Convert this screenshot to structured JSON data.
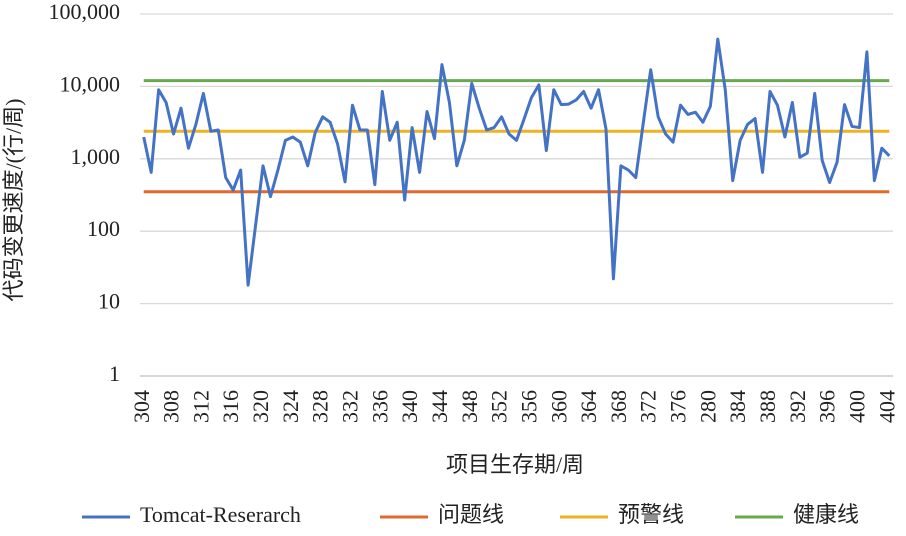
{
  "chart_data": {
    "type": "line",
    "y_scale": "log",
    "grid": true,
    "legend": "bottom",
    "ylabel": "代码变更速度/(行/周)",
    "xlabel": "项目生存期/周",
    "ylim": [
      1,
      100000
    ],
    "yticks": [
      {
        "value": 100000,
        "label": "100,000"
      },
      {
        "value": 10000,
        "label": "10,000"
      },
      {
        "value": 1000,
        "label": "1,000"
      },
      100,
      10,
      1
    ],
    "categories": [
      "304",
      null,
      null,
      null,
      "308",
      null,
      null,
      null,
      "312",
      null,
      null,
      null,
      "316",
      null,
      null,
      null,
      "320",
      null,
      null,
      null,
      "324",
      null,
      null,
      null,
      "328",
      null,
      null,
      null,
      "332",
      null,
      null,
      null,
      "336",
      null,
      null,
      null,
      "340",
      null,
      null,
      null,
      "344",
      null,
      null,
      null,
      "348",
      null,
      null,
      null,
      "352",
      null,
      null,
      null,
      "356",
      null,
      null,
      null,
      "360",
      null,
      null,
      null,
      "364",
      null,
      null,
      null,
      "368",
      null,
      null,
      null,
      "372",
      null,
      null,
      null,
      "376",
      null,
      null,
      null,
      "280",
      null,
      null,
      null,
      "384",
      null,
      null,
      null,
      "388",
      null,
      null,
      null,
      "392",
      null,
      null,
      null,
      "396",
      null,
      null,
      null,
      "400",
      null,
      null,
      null,
      "404"
    ],
    "series": [
      {
        "name": "Tomcat-Reserarch",
        "color": "#4472c4",
        "values": [
          2000,
          650,
          9000,
          6000,
          2200,
          5000,
          1400,
          3000,
          8000,
          2400,
          2500,
          550,
          370,
          700,
          18,
          120,
          800,
          300,
          700,
          1800,
          2000,
          1700,
          800,
          2300,
          3800,
          3200,
          1600,
          480,
          5500,
          2500,
          2500,
          440,
          8500,
          1800,
          3200,
          270,
          2700,
          650,
          4500,
          1900,
          20000,
          6000,
          800,
          1800,
          11000,
          5000,
          2500,
          2700,
          3800,
          2200,
          1800,
          3500,
          7000,
          10500,
          1300,
          9000,
          5600,
          5700,
          6500,
          8500,
          5000,
          9000,
          2600,
          22,
          800,
          700,
          550,
          3100,
          17000,
          3800,
          2200,
          1700,
          5500,
          4100,
          4400,
          3200,
          5300,
          45000,
          9000,
          500,
          1800,
          3000,
          3600,
          650,
          8500,
          5500,
          2000,
          6000,
          1050,
          1200,
          8000,
          950,
          470,
          900,
          5600,
          2800,
          2700,
          30000,
          500,
          1400,
          1100
        ]
      },
      {
        "name": "问题线",
        "color": "#e0692c",
        "values": [
          350,
          350,
          350,
          350,
          350,
          350,
          350,
          350,
          350,
          350,
          350,
          350,
          350,
          350,
          350,
          350,
          350,
          350,
          350,
          350,
          350,
          350,
          350,
          350,
          350,
          350,
          350,
          350,
          350,
          350,
          350,
          350,
          350,
          350,
          350,
          350,
          350,
          350,
          350,
          350,
          350,
          350,
          350,
          350,
          350,
          350,
          350,
          350,
          350,
          350,
          350,
          350,
          350,
          350,
          350,
          350,
          350,
          350,
          350,
          350,
          350,
          350,
          350,
          350,
          350,
          350,
          350,
          350,
          350,
          350,
          350,
          350,
          350,
          350,
          350,
          350,
          350,
          350,
          350,
          350,
          350,
          350,
          350,
          350,
          350,
          350,
          350,
          350,
          350,
          350,
          350,
          350,
          350,
          350,
          350,
          350,
          350,
          350,
          350,
          350,
          350
        ]
      },
      {
        "name": "预警线",
        "color": "#f2b120",
        "values": [
          2400,
          2400,
          2400,
          2400,
          2400,
          2400,
          2400,
          2400,
          2400,
          2400,
          2400,
          2400,
          2400,
          2400,
          2400,
          2400,
          2400,
          2400,
          2400,
          2400,
          2400,
          2400,
          2400,
          2400,
          2400,
          2400,
          2400,
          2400,
          2400,
          2400,
          2400,
          2400,
          2400,
          2400,
          2400,
          2400,
          2400,
          2400,
          2400,
          2400,
          2400,
          2400,
          2400,
          2400,
          2400,
          2400,
          2400,
          2400,
          2400,
          2400,
          2400,
          2400,
          2400,
          2400,
          2400,
          2400,
          2400,
          2400,
          2400,
          2400,
          2400,
          2400,
          2400,
          2400,
          2400,
          2400,
          2400,
          2400,
          2400,
          2400,
          2400,
          2400,
          2400,
          2400,
          2400,
          2400,
          2400,
          2400,
          2400,
          2400,
          2400,
          2400,
          2400,
          2400,
          2400,
          2400,
          2400,
          2400,
          2400,
          2400,
          2400,
          2400,
          2400,
          2400,
          2400,
          2400,
          2400,
          2400,
          2400,
          2400,
          2400
        ]
      },
      {
        "name": "健康线",
        "color": "#6aa84f",
        "values": [
          12000,
          12000,
          12000,
          12000,
          12000,
          12000,
          12000,
          12000,
          12000,
          12000,
          12000,
          12000,
          12000,
          12000,
          12000,
          12000,
          12000,
          12000,
          12000,
          12000,
          12000,
          12000,
          12000,
          12000,
          12000,
          12000,
          12000,
          12000,
          12000,
          12000,
          12000,
          12000,
          12000,
          12000,
          12000,
          12000,
          12000,
          12000,
          12000,
          12000,
          12000,
          12000,
          12000,
          12000,
          12000,
          12000,
          12000,
          12000,
          12000,
          12000,
          12000,
          12000,
          12000,
          12000,
          12000,
          12000,
          12000,
          12000,
          12000,
          12000,
          12000,
          12000,
          12000,
          12000,
          12000,
          12000,
          12000,
          12000,
          12000,
          12000,
          12000,
          12000,
          12000,
          12000,
          12000,
          12000,
          12000,
          12000,
          12000,
          12000,
          12000,
          12000,
          12000,
          12000,
          12000,
          12000,
          12000,
          12000,
          12000,
          12000,
          12000,
          12000,
          12000,
          12000,
          12000,
          12000,
          12000,
          12000,
          12000,
          12000,
          12000
        ]
      }
    ]
  }
}
